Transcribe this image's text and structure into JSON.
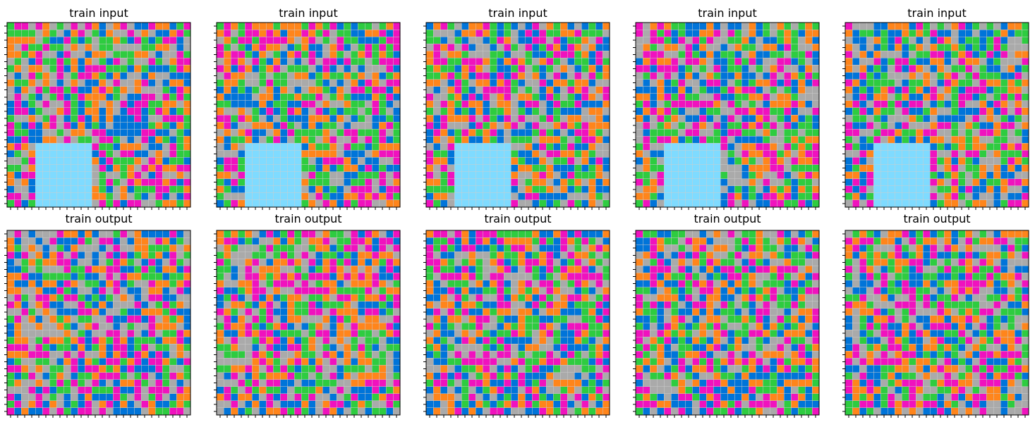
{
  "figure": {
    "panels": [
      {
        "title": "train input",
        "grid_rows": 26,
        "grid_cols": 26,
        "masked_region": {
          "row_start": 17,
          "row_end": 25,
          "col_start": 4,
          "col_end": 11,
          "color": "light-blue"
        }
      },
      {
        "title": "train input",
        "grid_rows": 26,
        "grid_cols": 26,
        "masked_region": {
          "row_start": 17,
          "row_end": 25,
          "col_start": 4,
          "col_end": 11,
          "color": "light-blue"
        }
      },
      {
        "title": "train input",
        "grid_rows": 26,
        "grid_cols": 26,
        "masked_region": {
          "row_start": 17,
          "row_end": 25,
          "col_start": 4,
          "col_end": 11,
          "color": "light-blue"
        }
      },
      {
        "title": "train input",
        "grid_rows": 26,
        "grid_cols": 26,
        "masked_region": {
          "row_start": 17,
          "row_end": 25,
          "col_start": 4,
          "col_end": 11,
          "color": "light-blue"
        }
      },
      {
        "title": "train input",
        "grid_rows": 26,
        "grid_cols": 26,
        "masked_region": {
          "row_start": 17,
          "row_end": 25,
          "col_start": 4,
          "col_end": 11,
          "color": "light-blue"
        }
      },
      {
        "title": "train output",
        "grid_rows": 26,
        "grid_cols": 26
      },
      {
        "title": "train output",
        "grid_rows": 26,
        "grid_cols": 26
      },
      {
        "title": "train output",
        "grid_rows": 26,
        "grid_cols": 26
      },
      {
        "title": "train output",
        "grid_rows": 26,
        "grid_cols": 26
      },
      {
        "title": "train output",
        "grid_rows": 26,
        "grid_cols": 26
      }
    ]
  },
  "palette": {
    "blue": "#0074D9",
    "gray": "#AAAAAA",
    "magenta": "#F012BE",
    "orange": "#FF851B",
    "green": "#2ECC40",
    "light-blue": "#7FDBFF",
    "grid_line": "#cccccc"
  }
}
